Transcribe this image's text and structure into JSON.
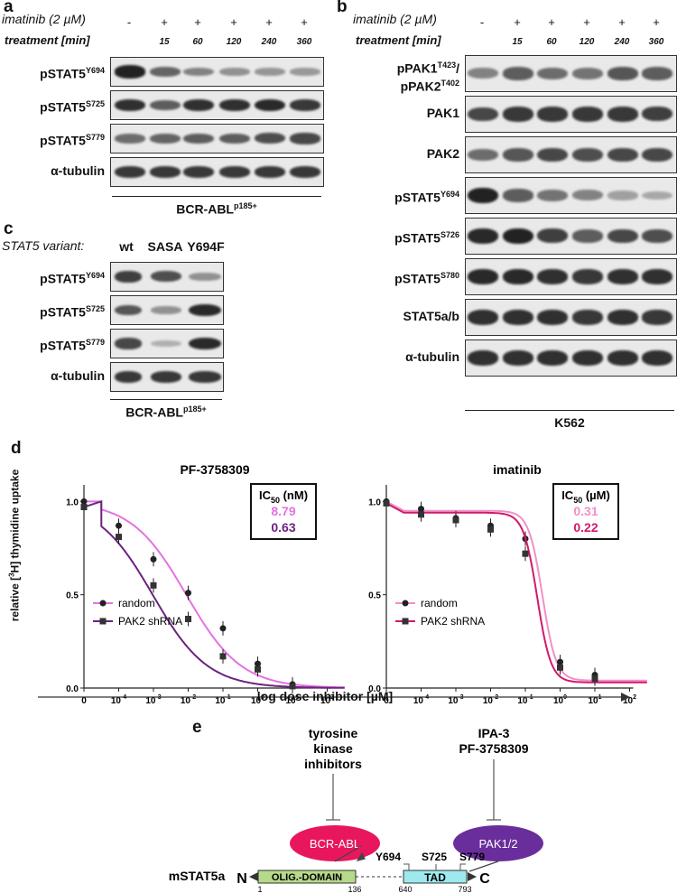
{
  "panels": {
    "a": {
      "letter": "a",
      "treatment_label": "imatinib (2 µM)",
      "time_label": "treatment [min]",
      "marks": [
        "-",
        "+",
        "+",
        "+",
        "+",
        "+"
      ],
      "times": [
        "",
        "15",
        "60",
        "120",
        "240",
        "360"
      ],
      "rows": [
        {
          "name": "pSTAT5",
          "sup": "Y694"
        },
        {
          "name": "pSTAT5",
          "sup": "S725"
        },
        {
          "name": "pSTAT5",
          "sup": "S779"
        },
        {
          "name": "α-tubulin",
          "sup": ""
        }
      ],
      "cell_line": "BCR-ABL",
      "cell_line_sup": "p185+"
    },
    "b": {
      "letter": "b",
      "treatment_label": "imatinib (2 µM)",
      "time_label": "treatment [min]",
      "marks": [
        "-",
        "+",
        "+",
        "+",
        "+",
        "+"
      ],
      "times": [
        "",
        "15",
        "60",
        "120",
        "240",
        "360"
      ],
      "rows": [
        {
          "name": "pPAK1",
          "sup": "T423",
          "suffix": "/",
          "name2": "pPAK2",
          "sup2": "T402"
        },
        {
          "name": "PAK1",
          "sup": ""
        },
        {
          "name": "PAK2",
          "sup": ""
        },
        {
          "name": "pSTAT5",
          "sup": "Y694"
        },
        {
          "name": "pSTAT5",
          "sup": "S726"
        },
        {
          "name": "pSTAT5",
          "sup": "S780"
        },
        {
          "name": "STAT5a/b",
          "sup": ""
        },
        {
          "name": "α-tubulin",
          "sup": ""
        }
      ],
      "cell_line": "K562"
    },
    "c": {
      "letter": "c",
      "variant_label": "STAT5 variant:",
      "variants": [
        "wt",
        "SASA",
        "Y694F"
      ],
      "rows": [
        {
          "name": "pSTAT5",
          "sup": "Y694"
        },
        {
          "name": "pSTAT5",
          "sup": "S725"
        },
        {
          "name": "pSTAT5",
          "sup": "S779"
        },
        {
          "name": "α-tubulin",
          "sup": ""
        }
      ],
      "cell_line": "BCR-ABL",
      "cell_line_sup": "p185+"
    },
    "d": {
      "letter": "d",
      "x_label": "log dose inhibitor [µM]",
      "y_label_pre": "relative [",
      "y_label_sup": "3",
      "y_label_post": "H] thymidine uptake"
    },
    "e": {
      "letter": "e",
      "tki_lines": [
        "tyrosine",
        "kinase",
        "inhibitors"
      ],
      "pak_inhib_lines": [
        "IPA-3",
        "PF-3758309"
      ],
      "bcr_abl": "BCR-ABL",
      "pak12": "PAK1/2",
      "protein": "mSTAT5a",
      "n_term": "N",
      "c_term": "C",
      "olig": "OLIG.-DOMAIN",
      "tad": "TAD",
      "sites": [
        "Y694",
        "S725",
        "S779"
      ],
      "positions": [
        "1",
        "136",
        "640",
        "793"
      ],
      "colors": {
        "bcr_abl": "#e8175d",
        "pak12": "#6a2e9c",
        "olig": "#b6d98a",
        "tad": "#9de9ee"
      }
    }
  },
  "chart_data": [
    {
      "type": "line",
      "title": "PF-3758309",
      "xlabel": "log dose inhibitor [µM]",
      "ylabel": "relative [3H] thymidine uptake",
      "x_ticks": [
        "0",
        "10-4",
        "10-3",
        "10-2",
        "10-1",
        "100",
        "101",
        "102"
      ],
      "y_ticks": [
        "0.0",
        "0.5",
        "1.0"
      ],
      "ylim": [
        0,
        1.05
      ],
      "ic50_header": "IC50 (nM)",
      "series": [
        {
          "name": "random",
          "color": "#e472e0",
          "marker": "circle",
          "ic50": "8.79",
          "x": [
            0,
            0.0001,
            0.001,
            0.01,
            0.1,
            1,
            10
          ],
          "y": [
            1.0,
            0.87,
            0.69,
            0.51,
            0.32,
            0.13,
            0.02
          ]
        },
        {
          "name": "PAK2 shRNA",
          "color": "#6b237f",
          "marker": "square",
          "ic50": "0.63",
          "x": [
            0,
            0.0001,
            0.001,
            0.01,
            0.1,
            1,
            10
          ],
          "y": [
            0.97,
            0.81,
            0.55,
            0.37,
            0.17,
            0.1,
            0.01
          ]
        }
      ],
      "legend": "bottom-left"
    },
    {
      "type": "line",
      "title": "imatinib",
      "xlabel": "log dose inhibitor [µM]",
      "x_ticks": [
        "0",
        "10-4",
        "10-3",
        "10-2",
        "10-1",
        "100",
        "101",
        "102"
      ],
      "y_ticks": [
        "0.0",
        "0.5",
        "1.0"
      ],
      "ylim": [
        0,
        1.05
      ],
      "ic50_header": "IC50 (µM)",
      "series": [
        {
          "name": "random",
          "color": "#f090c8",
          "marker": "circle",
          "ic50": "0.31",
          "x": [
            0,
            0.0001,
            0.001,
            0.01,
            0.1,
            1,
            10
          ],
          "y": [
            1.0,
            0.96,
            0.91,
            0.87,
            0.8,
            0.14,
            0.07
          ]
        },
        {
          "name": "PAK2 shRNA",
          "color": "#d11a6a",
          "marker": "square",
          "ic50": "0.22",
          "x": [
            0,
            0.0001,
            0.001,
            0.01,
            0.1,
            1,
            10
          ],
          "y": [
            0.99,
            0.93,
            0.9,
            0.85,
            0.72,
            0.11,
            0.05
          ]
        }
      ],
      "legend": "bottom-left"
    }
  ]
}
